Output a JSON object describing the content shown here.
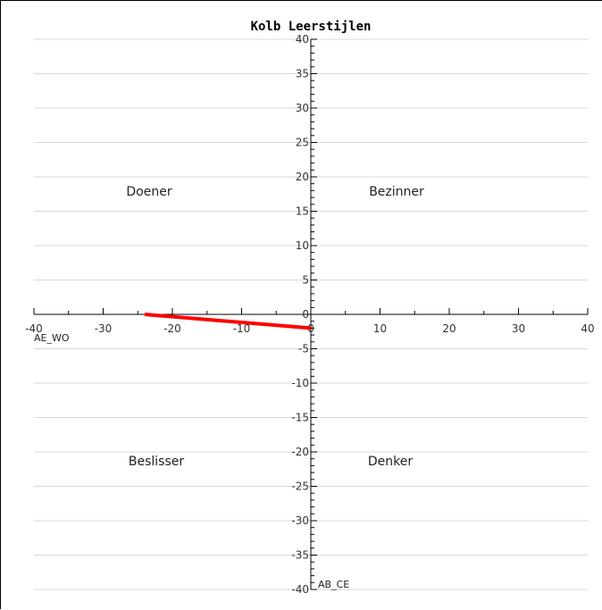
{
  "chart_data": {
    "type": "line",
    "title": "Kolb Leerstijlen",
    "xlim": [
      -40,
      40
    ],
    "ylim": [
      -40,
      40
    ],
    "x_ticks": [
      -40,
      -30,
      -20,
      -10,
      0,
      10,
      20,
      30,
      40
    ],
    "y_ticks": [
      40,
      35,
      30,
      25,
      20,
      15,
      10,
      5,
      0,
      -5,
      -10,
      -15,
      -20,
      -25,
      -30,
      -35,
      -40
    ],
    "x_axis_name": "AE_WO",
    "y_axis_name": "AB_CE",
    "grid": "horizontal",
    "quadrants": {
      "top_left": "Doener",
      "top_right": "Bezinner",
      "bottom_left": "Beslisser",
      "bottom_right": "Denker"
    },
    "series": [
      {
        "x": [
          -24,
          0
        ],
        "y": [
          0,
          -2
        ],
        "color": "#ff0000"
      }
    ]
  }
}
